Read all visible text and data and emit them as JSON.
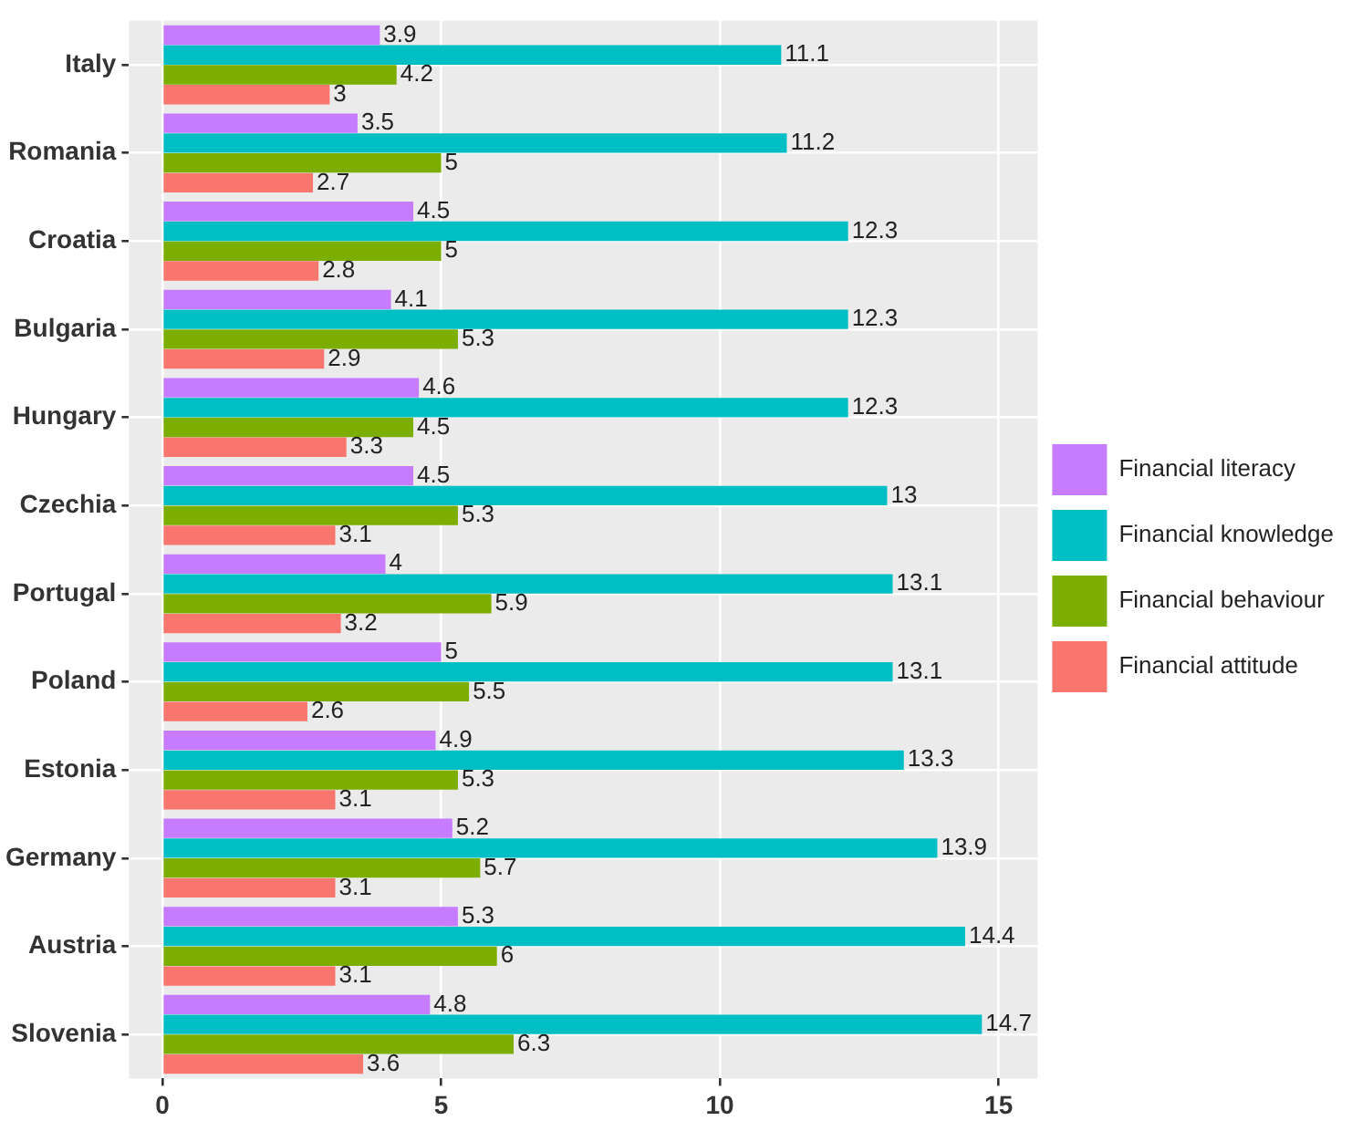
{
  "chart_data": {
    "type": "bar",
    "orientation": "horizontal",
    "categories": [
      "Italy",
      "Romania",
      "Croatia",
      "Bulgaria",
      "Hungary",
      "Czechia",
      "Portugal",
      "Poland",
      "Estonia",
      "Germany",
      "Austria",
      "Slovenia"
    ],
    "series": [
      {
        "name": "Financial literacy",
        "color": "#c77cff",
        "values": [
          3.9,
          3.5,
          4.5,
          4.1,
          4.6,
          4.5,
          4,
          5,
          4.9,
          5.2,
          5.3,
          4.8
        ]
      },
      {
        "name": "Financial knowledge",
        "color": "#00bfc4",
        "values": [
          11.1,
          11.2,
          12.3,
          12.3,
          12.3,
          13,
          13.1,
          13.1,
          13.3,
          13.9,
          14.4,
          14.7
        ]
      },
      {
        "name": "Financial behaviour",
        "color": "#7cae00",
        "values": [
          4.2,
          5,
          5,
          5.3,
          4.5,
          5.3,
          5.9,
          5.5,
          5.3,
          5.7,
          6,
          6.3
        ]
      },
      {
        "name": "Financial attitude",
        "color": "#f8766d",
        "values": [
          3,
          2.7,
          2.8,
          2.9,
          3.3,
          3.1,
          3.2,
          2.6,
          3.1,
          3.1,
          3.1,
          3.6
        ]
      }
    ],
    "xlim": [
      -0.6,
      15.7
    ],
    "xticks": [
      0,
      5,
      10,
      15
    ],
    "grid": true,
    "legend": "right",
    "data_labels": true
  }
}
